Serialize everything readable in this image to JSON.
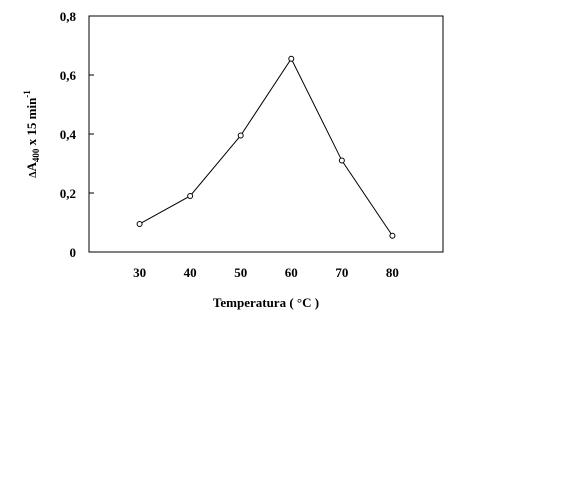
{
  "chart_data": {
    "type": "line",
    "title": "",
    "xlabel": "Temperatura ( °C )",
    "ylabel": "ΔA400 x 15 min-1",
    "ylabel_parts": {
      "delta": "Δ",
      "a": "A",
      "sub": "400",
      "rest": " x 15 min",
      "sup": "-1"
    },
    "x": [
      30,
      40,
      50,
      60,
      70,
      80
    ],
    "series": [
      {
        "values": [
          0.095,
          0.19,
          0.395,
          0.655,
          0.31,
          0.055
        ]
      }
    ],
    "xticks": [
      "30",
      "40",
      "50",
      "60",
      "70",
      "80"
    ],
    "yticks": [
      "0",
      "0,2",
      "0,4",
      "0,6",
      "0,8"
    ],
    "xlim": [
      20,
      90
    ],
    "ylim": [
      0,
      0.8
    ],
    "grid": false,
    "marker": "open-circle",
    "line_color": "#000000"
  }
}
